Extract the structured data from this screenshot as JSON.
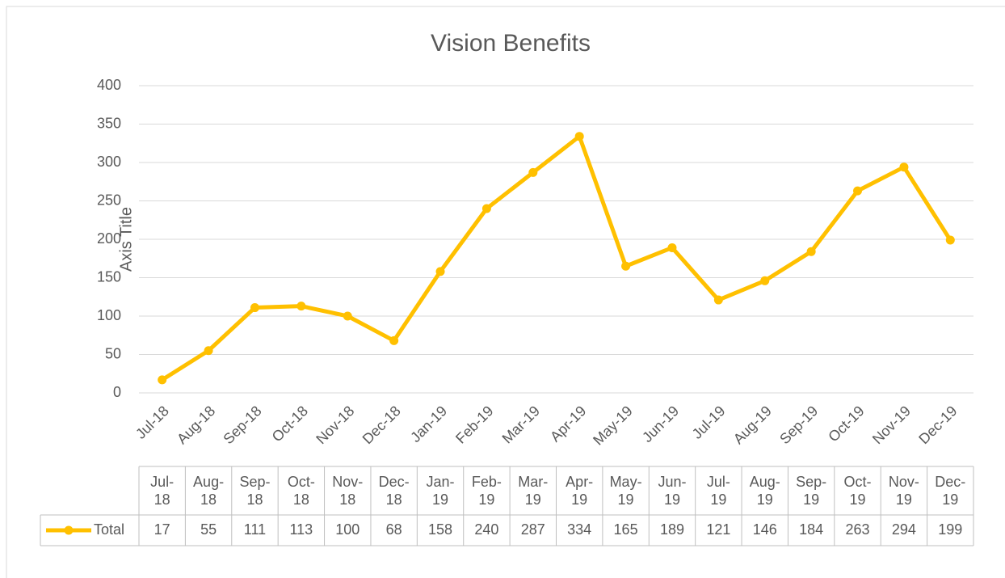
{
  "chart_data": {
    "type": "line",
    "title": "Vision Benefits",
    "y_axis_title": "Axis Title",
    "categories": [
      "Jul-18",
      "Aug-18",
      "Sep-18",
      "Oct-18",
      "Nov-18",
      "Dec-18",
      "Jan-19",
      "Feb-19",
      "Mar-19",
      "Apr-19",
      "May-19",
      "Jun-19",
      "Jul-19",
      "Aug-19",
      "Sep-19",
      "Oct-19",
      "Nov-19",
      "Dec-19"
    ],
    "series": [
      {
        "name": "Total",
        "color": "#ffc000",
        "values": [
          17,
          55,
          111,
          113,
          100,
          68,
          158,
          240,
          287,
          334,
          165,
          189,
          121,
          146,
          184,
          263,
          294,
          199
        ]
      }
    ],
    "ylim": [
      0,
      400
    ],
    "yticks": [
      0,
      50,
      100,
      150,
      200,
      250,
      300,
      350,
      400
    ],
    "grid": true,
    "data_table": true
  }
}
